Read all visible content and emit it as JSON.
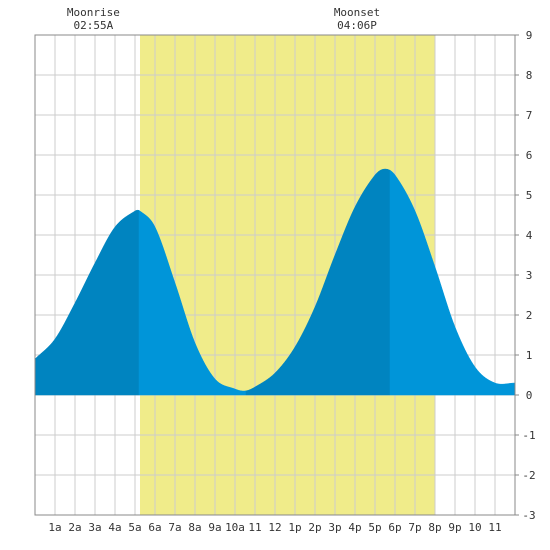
{
  "chart_data": {
    "type": "area",
    "x_unit": "hour of day",
    "xlim": [
      0,
      24
    ],
    "ylim": [
      -3,
      9
    ],
    "y_ticks": [
      -3,
      -2,
      -1,
      0,
      1,
      2,
      3,
      4,
      5,
      6,
      7,
      8,
      9
    ],
    "x_tick_labels": [
      {
        "hour": 1,
        "label": "1a"
      },
      {
        "hour": 2,
        "label": "2a"
      },
      {
        "hour": 3,
        "label": "3a"
      },
      {
        "hour": 4,
        "label": "4a"
      },
      {
        "hour": 5,
        "label": "5a"
      },
      {
        "hour": 6,
        "label": "6a"
      },
      {
        "hour": 7,
        "label": "7a"
      },
      {
        "hour": 8,
        "label": "8a"
      },
      {
        "hour": 9,
        "label": "9a"
      },
      {
        "hour": 10,
        "label": "10a"
      },
      {
        "hour": 11,
        "label": "11"
      },
      {
        "hour": 12,
        "label": "12"
      },
      {
        "hour": 13,
        "label": "1p"
      },
      {
        "hour": 14,
        "label": "2p"
      },
      {
        "hour": 15,
        "label": "3p"
      },
      {
        "hour": 16,
        "label": "4p"
      },
      {
        "hour": 17,
        "label": "5p"
      },
      {
        "hour": 18,
        "label": "6p"
      },
      {
        "hour": 19,
        "label": "7p"
      },
      {
        "hour": 20,
        "label": "8p"
      },
      {
        "hour": 21,
        "label": "9p"
      },
      {
        "hour": 22,
        "label": "10"
      },
      {
        "hour": 23,
        "label": "11"
      }
    ],
    "grid": true,
    "daylight": {
      "start_hour": 5.25,
      "end_hour": 20.0
    },
    "annotations": [
      {
        "title": "Moonrise",
        "time": "02:55A",
        "hour": 2.92
      },
      {
        "title": "Moonset",
        "time": "04:06P",
        "hour": 16.1
      }
    ],
    "tide_curve": {
      "x": [
        0,
        1,
        2,
        3,
        4,
        5,
        5.25,
        6,
        7,
        8,
        9,
        10,
        10.5,
        11,
        12,
        13,
        14,
        15,
        16,
        17,
        17.5,
        18,
        19,
        20,
        21,
        22,
        23,
        24
      ],
      "y": [
        0.9,
        1.4,
        2.3,
        3.3,
        4.2,
        4.6,
        4.6,
        4.2,
        2.8,
        1.3,
        0.4,
        0.15,
        0.1,
        0.2,
        0.55,
        1.2,
        2.2,
        3.5,
        4.7,
        5.5,
        5.65,
        5.5,
        4.6,
        3.2,
        1.7,
        0.7,
        0.3,
        0.3
      ]
    },
    "tide_shading": [
      {
        "from_hour": 0,
        "to_hour": 5.2,
        "color": "#0084c0"
      },
      {
        "from_hour": 5.2,
        "to_hour": 10.55,
        "color": "#0095d9"
      },
      {
        "from_hour": 10.55,
        "to_hour": 17.75,
        "color": "#0084c0"
      },
      {
        "from_hour": 17.75,
        "to_hour": 24,
        "color": "#0095d9"
      }
    ],
    "colors": {
      "daylight": "#f0ec8a",
      "grid": "#cccccc",
      "frame": "#888888",
      "text": "#333333"
    }
  }
}
